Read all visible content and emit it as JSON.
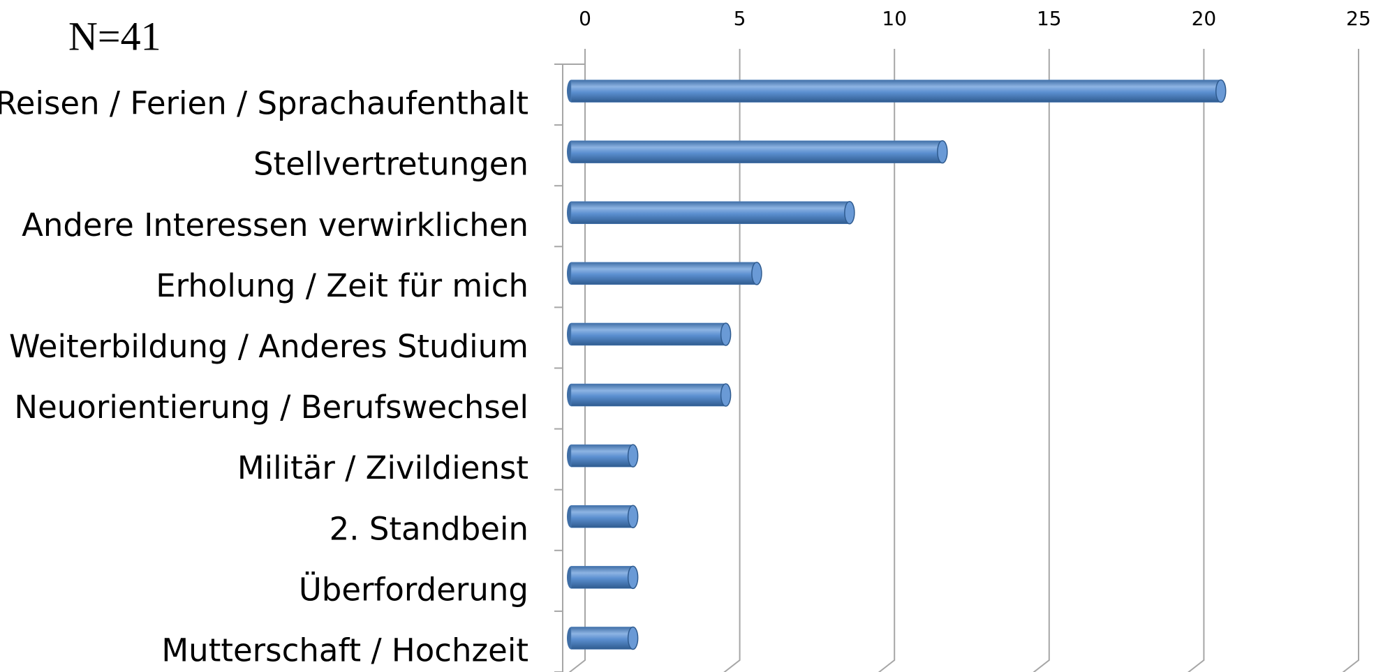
{
  "chart_data": {
    "type": "bar",
    "orientation": "horizontal",
    "annotation": "N=41",
    "categories": [
      "Reisen / Ferien / Sprachaufenthalt",
      "Stellvertretungen",
      "Andere Interessen verwirklichen",
      "Erholung / Zeit für mich",
      "Weiterbildung / Anderes Studium",
      "Neuorientierung / Berufswechsel",
      "Militär / Zivildienst",
      "2. Standbein",
      "Überforderung",
      "Mutterschaft / Hochzeit"
    ],
    "values": [
      21,
      12,
      9,
      6,
      5,
      5,
      2,
      2,
      2,
      2
    ],
    "color": "#4f81bd",
    "xlim": [
      0,
      25
    ],
    "xticks": [
      0,
      5,
      10,
      15,
      20,
      25
    ],
    "grid": true
  }
}
